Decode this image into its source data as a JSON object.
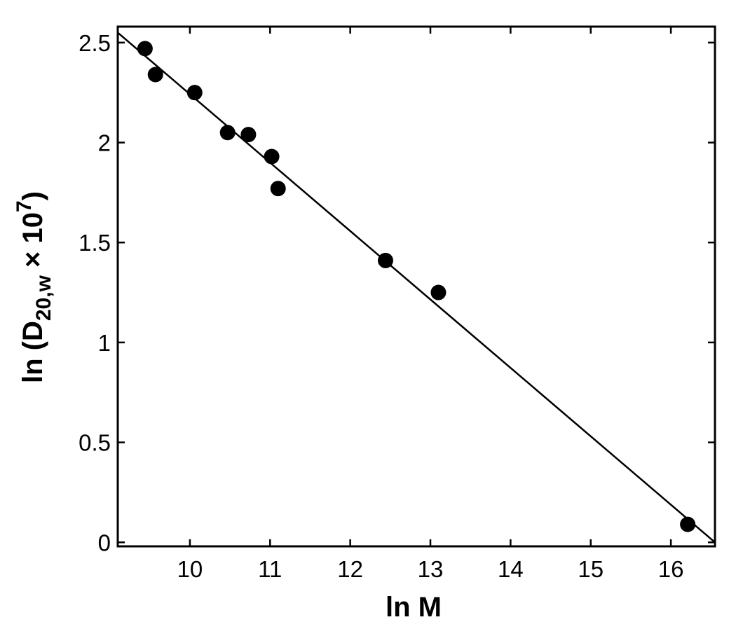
{
  "chart_data": {
    "type": "scatter",
    "title": "",
    "xlabel": "ln M",
    "ylabel": {
      "prefix": "ln (D",
      "subscript": "20,w",
      "middle": " × 10",
      "superscript": "7",
      "suffix": ")"
    },
    "xlim": [
      9.1,
      16.55
    ],
    "ylim": [
      -0.02,
      2.58
    ],
    "xticks": [
      10,
      11,
      12,
      13,
      14,
      15,
      16
    ],
    "yticks": [
      0,
      0.5,
      1,
      1.5,
      2,
      2.5
    ],
    "xtick_labels": [
      "10",
      "11",
      "12",
      "13",
      "14",
      "15",
      "16"
    ],
    "ytick_labels": [
      "0",
      "0.5",
      "1",
      "1.5",
      "2",
      "2.5"
    ],
    "grid": false,
    "legend": "none",
    "colors": {
      "marker": "#000000",
      "line": "#000000",
      "axes": "#000000",
      "background": "#ffffff"
    },
    "series": [
      {
        "type": "scatter",
        "marker": "filled-circle",
        "x": [
          9.44,
          9.57,
          10.06,
          10.47,
          10.73,
          11.02,
          11.1,
          12.44,
          13.1,
          16.21
        ],
        "y": [
          2.47,
          2.34,
          2.25,
          2.05,
          2.04,
          1.93,
          1.77,
          1.41,
          1.25,
          0.09
        ]
      },
      {
        "type": "line",
        "x": [
          9.1,
          16.55
        ],
        "y": [
          2.55,
          0.0
        ]
      }
    ]
  }
}
